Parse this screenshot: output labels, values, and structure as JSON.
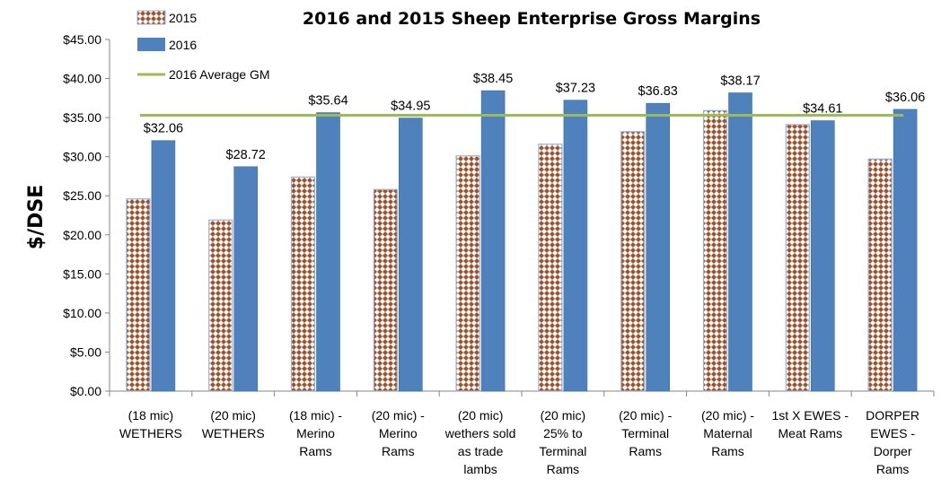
{
  "chart_data": {
    "type": "bar",
    "title": "2016 and 2015 Sheep Enterprise Gross Margins",
    "ylabel": "$/DSE",
    "xlabel": "",
    "ylim": [
      0,
      45
    ],
    "yticks": [
      "$0.00",
      "$5.00",
      "$10.00",
      "$15.00",
      "$20.00",
      "$25.00",
      "$30.00",
      "$35.00",
      "$40.00",
      "$45.00"
    ],
    "ytick_values": [
      0,
      5,
      10,
      15,
      20,
      25,
      30,
      35,
      40,
      45
    ],
    "categories": [
      [
        "(18 mic)",
        "WETHERS"
      ],
      [
        "(20 mic)",
        "WETHERS"
      ],
      [
        "(18 mic) -",
        "Merino",
        "Rams"
      ],
      [
        "(20 mic) -",
        "Merino",
        "Rams"
      ],
      [
        "(20 mic)",
        "wethers sold",
        "as trade",
        "lambs"
      ],
      [
        "(20 mic)",
        "25% to",
        "Terminal",
        "Rams"
      ],
      [
        "(20 mic) -",
        "Terminal",
        "Rams"
      ],
      [
        "(20 mic) -",
        "Maternal",
        "Rams"
      ],
      [
        "1st X EWES -",
        "Meat Rams"
      ],
      [
        "DORPER",
        "EWES -",
        "Dorper",
        "Rams"
      ]
    ],
    "series": [
      {
        "name": "2015",
        "values": [
          24.6,
          21.9,
          27.4,
          25.8,
          30.1,
          31.6,
          33.2,
          35.9,
          34.1,
          29.7
        ],
        "pattern": "diamond-checker",
        "color": "#a0522d"
      },
      {
        "name": "2016",
        "values": [
          32.06,
          28.72,
          35.64,
          34.95,
          38.45,
          37.23,
          36.83,
          38.17,
          34.61,
          36.06
        ],
        "color": "#4f81bd"
      }
    ],
    "data_labels_2016": [
      "$32.06",
      "$28.72",
      "$35.64",
      "$34.95",
      "$38.45",
      "$37.23",
      "$36.83",
      "$38.17",
      "$34.61",
      "$36.06"
    ],
    "average_line": {
      "name": "2016 Average GM",
      "value": 35.3,
      "color": "#9bbb59"
    },
    "legend_position": "top-left",
    "grid": false
  }
}
